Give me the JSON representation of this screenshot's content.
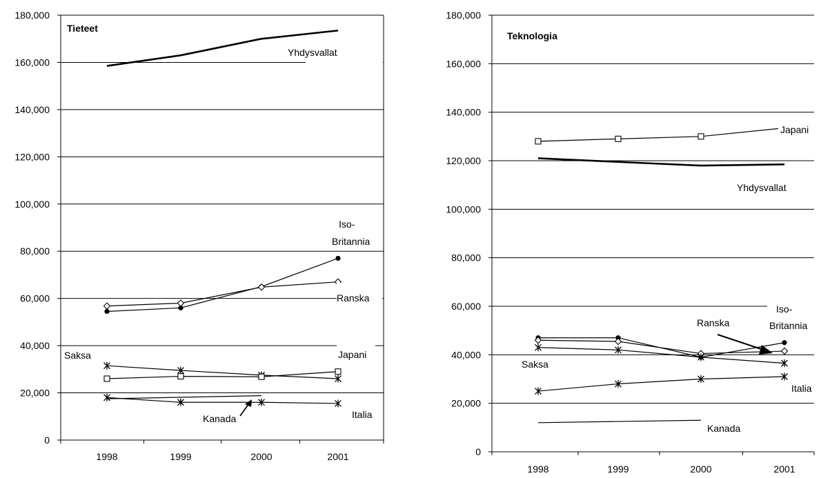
{
  "chart_data": [
    {
      "type": "line",
      "title": "Tieteet",
      "categories": [
        "1998",
        "1999",
        "2000",
        "2001"
      ],
      "ylim": [
        0,
        180000
      ],
      "y_ticks": [
        "0",
        "20,000",
        "40,000",
        "60,000",
        "80,000",
        "100,000",
        "120,000",
        "140,000",
        "160,000",
        "180,000"
      ],
      "grid": true,
      "series": [
        {
          "name": "Yhdysvallat",
          "marker": "none",
          "values": [
            158500,
            163000,
            170000,
            173500
          ]
        },
        {
          "name": "Iso-Britannia",
          "marker": "dot",
          "values": [
            54500,
            56000,
            65000,
            77000
          ]
        },
        {
          "name": "Ranska",
          "marker": "diamond",
          "values": [
            56800,
            58000,
            64800,
            67000
          ]
        },
        {
          "name": "Saksa",
          "marker": "star",
          "values": [
            31500,
            29500,
            27500,
            26000
          ]
        },
        {
          "name": "Japani",
          "marker": "square",
          "values": [
            26000,
            27000,
            26800,
            29000
          ]
        },
        {
          "name": "Kanada",
          "marker": "none",
          "values": [
            17500,
            null,
            18800,
            null
          ]
        },
        {
          "name": "Italia",
          "marker": "star",
          "values": [
            18000,
            16000,
            16000,
            15500
          ]
        }
      ],
      "labels": {
        "yhdysvallat": "Yhdysvallat",
        "iso_1": "Iso-",
        "iso_2": "Britannia",
        "ranska": "Ranska",
        "saksa": "Saksa",
        "japani": "Japani",
        "kanada": "Kanada",
        "italia": "Italia"
      }
    },
    {
      "type": "line",
      "title": "Teknologia",
      "categories": [
        "1998",
        "1999",
        "2000",
        "2001"
      ],
      "ylim": [
        0,
        180000
      ],
      "y_ticks": [
        "0",
        "20,000",
        "40,000",
        "60,000",
        "80,000",
        "100,000",
        "120,000",
        "140,000",
        "160,000",
        "180,000"
      ],
      "grid": true,
      "series": [
        {
          "name": "Japani",
          "marker": "square",
          "values": [
            128000,
            129000,
            130000,
            133500
          ]
        },
        {
          "name": "Yhdysvallat",
          "marker": "none",
          "values": [
            121000,
            119500,
            118000,
            118500
          ]
        },
        {
          "name": "Iso-Britannia",
          "marker": "dot",
          "values": [
            47000,
            47000,
            39000,
            45000
          ]
        },
        {
          "name": "Ranska",
          "marker": "diamond",
          "values": [
            46000,
            45500,
            40500,
            41500
          ]
        },
        {
          "name": "Saksa",
          "marker": "star",
          "values": [
            43000,
            42000,
            39000,
            36500
          ]
        },
        {
          "name": "Italia",
          "marker": "star",
          "values": [
            25000,
            28000,
            30000,
            31000
          ]
        },
        {
          "name": "Kanada",
          "marker": "none",
          "values": [
            12000,
            null,
            13000,
            null
          ]
        }
      ],
      "labels": {
        "japani": "Japani",
        "yhdysvallat": "Yhdysvallat",
        "iso_1": "Iso-",
        "iso_2": "Britannia",
        "ranska": "Ranska",
        "saksa": "Saksa",
        "italia": "Italia",
        "kanada": "Kanada"
      }
    }
  ]
}
